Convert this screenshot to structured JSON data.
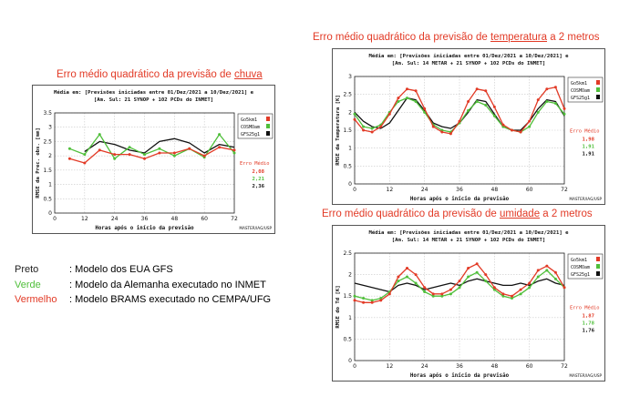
{
  "legend": [
    {
      "name": "Preto",
      "desc": ": Modelo dos EUA GFS",
      "color": "#222222"
    },
    {
      "name": "Verde",
      "desc": ": Modelo da Alemanha executado no INMET",
      "color": "#4fbf3a"
    },
    {
      "name": "Vermelho",
      "desc": ": Modelo BRAMS executado no CEMPA/UFG",
      "color": "#e23a26"
    }
  ],
  "chart_data": [
    {
      "id": "chuva",
      "type": "line",
      "title_before": "Erro médio quadrático da previsão de ",
      "title_underlined": "chuva",
      "title_after": "",
      "header_line1": "Média em: [Previsões iniciadas entre 01/Dez/2021 a 10/Dez/2021] e",
      "header_line2": "[Am. Sul: 21 SYNOP + 102 PCDs do INMET]",
      "ylabel": "RMSE da Prec. obs. [mm]",
      "xlabel": "Horas após o início da previsão",
      "credit": "MASTER/IAG/USP",
      "ylim": [
        0,
        3.5
      ],
      "yticks": [
        "0",
        "0.5",
        "1",
        "1.5",
        "2",
        "2.5",
        "3",
        "3.5"
      ],
      "xlim": [
        0,
        72
      ],
      "xticks": [
        "0",
        "12",
        "24",
        "36",
        "48",
        "60",
        "72"
      ],
      "x": [
        6,
        12,
        18,
        24,
        30,
        36,
        42,
        48,
        54,
        60,
        66,
        72
      ],
      "series": [
        {
          "name": "Go5km1",
          "color": "#e23a26",
          "marker": true,
          "values": [
            1.9,
            1.75,
            2.2,
            2.05,
            2.05,
            1.9,
            2.1,
            2.1,
            2.25,
            2.0,
            2.3,
            2.2
          ]
        },
        {
          "name": "COSMOam",
          "color": "#4fbf3a",
          "marker": true,
          "values": [
            2.25,
            2.05,
            2.75,
            1.9,
            2.3,
            2.05,
            2.25,
            2.0,
            2.25,
            1.95,
            2.75,
            2.1
          ]
        },
        {
          "name": "GFS25g1",
          "color": "#111111",
          "marker": false,
          "values": [
            null,
            2.15,
            2.5,
            2.4,
            2.2,
            2.1,
            2.5,
            2.6,
            2.45,
            2.1,
            2.4,
            2.3
          ]
        }
      ],
      "erro_label": "Erro Médio",
      "erro_values": [
        "2,08",
        "2,21",
        "2,36"
      ]
    },
    {
      "id": "temperatura",
      "type": "line",
      "title_before": "Erro médio quadrático da previsão de ",
      "title_underlined": "temperatura",
      "title_after": " a 2 metros",
      "header_line1": "Média em: [Previsões iniciadas entre 01/Dez/2021 a 10/Dez/2021] e",
      "header_line2": "[Am. Sul: 14 METAR + 21 SYNOP + 102 PCDs do INMET]",
      "ylabel": "RMSE da Temperatura [K]",
      "xlabel": "Horas após o início da previsão",
      "credit": "MASTER/IAG/USP",
      "ylim": [
        0,
        3
      ],
      "yticks": [
        "0",
        "0.5",
        "1",
        "1.5",
        "2",
        "2.5",
        "3"
      ],
      "xlim": [
        0,
        72
      ],
      "xticks": [
        "0",
        "12",
        "24",
        "36",
        "48",
        "60",
        "72"
      ],
      "x": [
        0,
        3,
        6,
        9,
        12,
        15,
        18,
        21,
        24,
        27,
        30,
        33,
        36,
        39,
        42,
        45,
        48,
        51,
        54,
        57,
        60,
        63,
        66,
        69,
        72
      ],
      "series": [
        {
          "name": "Go5km1",
          "color": "#e23a26",
          "marker": true,
          "values": [
            1.8,
            1.5,
            1.45,
            1.6,
            1.95,
            2.4,
            2.65,
            2.6,
            2.1,
            1.6,
            1.45,
            1.4,
            1.75,
            2.3,
            2.65,
            2.6,
            2.15,
            1.65,
            1.5,
            1.45,
            1.75,
            2.35,
            2.65,
            2.7,
            2.1
          ]
        },
        {
          "name": "COSMOam",
          "color": "#4fbf3a",
          "marker": true,
          "values": [
            1.95,
            1.6,
            1.55,
            1.65,
            2.0,
            2.3,
            2.4,
            2.3,
            2.0,
            1.65,
            1.5,
            1.45,
            1.7,
            2.05,
            2.3,
            2.2,
            1.9,
            1.6,
            1.5,
            1.45,
            1.6,
            2.0,
            2.3,
            2.25,
            1.95
          ]
        },
        {
          "name": "GFS25g1",
          "color": "#111111",
          "marker": false,
          "values": [
            2.0,
            1.75,
            1.6,
            1.55,
            1.7,
            2.05,
            2.4,
            2.35,
            2.05,
            1.7,
            1.6,
            1.55,
            1.7,
            2.0,
            2.35,
            2.3,
            1.95,
            1.6,
            1.5,
            1.5,
            1.75,
            2.1,
            2.35,
            2.3,
            1.9
          ]
        }
      ],
      "erro_label": "Erro Médio",
      "erro_values": [
        "1,98",
        "1,91",
        "1,91"
      ]
    },
    {
      "id": "umidade",
      "type": "line",
      "title_before": "Erro médio quadrático da previsão de ",
      "title_underlined": "umidade",
      "title_after": " a 2 metros",
      "header_line1": "Média em: [Previsões iniciadas entre 01/Dez/2021 a 10/Dez/2021] e",
      "header_line2": "[Am. Sul: 14 METAR + 21 SYNOP + 102 PCDs do INMET]",
      "ylabel": "RMSE do Td [K]",
      "xlabel": "Horas após o início da previsão",
      "credit": "MASTER/IAG/USP",
      "ylim": [
        0,
        2.5
      ],
      "yticks": [
        "0",
        "0.5",
        "1",
        "1.5",
        "2",
        "2.5"
      ],
      "xlim": [
        0,
        72
      ],
      "xticks": [
        "0",
        "12",
        "24",
        "36",
        "48",
        "60",
        "72"
      ],
      "x": [
        0,
        3,
        6,
        9,
        12,
        15,
        18,
        21,
        24,
        27,
        30,
        33,
        36,
        39,
        42,
        45,
        48,
        51,
        54,
        57,
        60,
        63,
        66,
        69,
        72
      ],
      "series": [
        {
          "name": "Go5km1",
          "color": "#e23a26",
          "marker": true,
          "values": [
            1.4,
            1.35,
            1.35,
            1.4,
            1.55,
            1.95,
            2.15,
            2.0,
            1.7,
            1.55,
            1.55,
            1.65,
            1.85,
            2.15,
            2.25,
            2.0,
            1.7,
            1.55,
            1.5,
            1.65,
            1.8,
            2.1,
            2.2,
            2.05,
            1.7
          ]
        },
        {
          "name": "COSMOam",
          "color": "#4fbf3a",
          "marker": true,
          "values": [
            1.5,
            1.45,
            1.4,
            1.45,
            1.6,
            1.85,
            1.95,
            1.8,
            1.6,
            1.5,
            1.5,
            1.55,
            1.7,
            1.95,
            2.05,
            1.85,
            1.65,
            1.5,
            1.45,
            1.55,
            1.7,
            1.95,
            2.1,
            1.9,
            1.7
          ]
        },
        {
          "name": "GFS25g1",
          "color": "#111111",
          "marker": false,
          "values": [
            1.8,
            1.75,
            1.7,
            1.65,
            1.6,
            1.75,
            1.8,
            1.75,
            1.65,
            1.7,
            1.75,
            1.8,
            1.75,
            1.85,
            1.9,
            1.85,
            1.8,
            1.75,
            1.75,
            1.8,
            1.75,
            1.85,
            1.9,
            1.8,
            1.75
          ]
        }
      ],
      "erro_label": "Erro Médio",
      "erro_values": [
        "1,87",
        "1,78",
        "1,76"
      ]
    }
  ]
}
